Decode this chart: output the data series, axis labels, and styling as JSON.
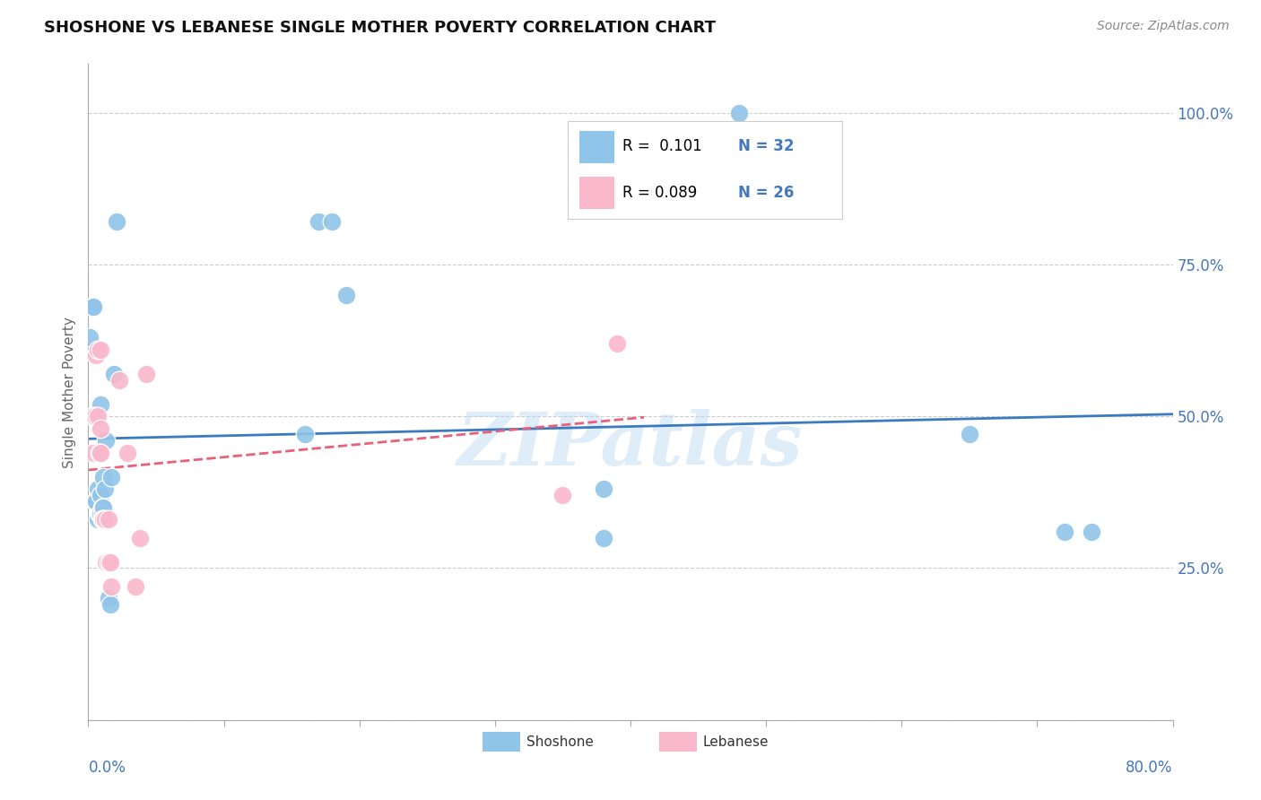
{
  "title": "SHOSHONE VS LEBANESE SINGLE MOTHER POVERTY CORRELATION CHART",
  "source": "Source: ZipAtlas.com",
  "ylabel": "Single Mother Poverty",
  "watermark": "ZIPatlas",
  "shoshone_color": "#90c4e8",
  "lebanese_color": "#f9b8cb",
  "shoshone_line_color": "#3a7abf",
  "lebanese_line_color": "#e8607a",
  "shoshone_x": [
    0.001,
    0.003,
    0.004,
    0.005,
    0.006,
    0.007,
    0.007,
    0.008,
    0.009,
    0.009,
    0.009,
    0.01,
    0.01,
    0.011,
    0.011,
    0.012,
    0.013,
    0.015,
    0.016,
    0.017,
    0.019,
    0.021,
    0.16,
    0.17,
    0.18,
    0.19,
    0.38,
    0.38,
    0.48,
    0.65,
    0.72,
    0.74
  ],
  "shoshone_y": [
    0.63,
    0.68,
    0.68,
    0.36,
    0.36,
    0.38,
    0.33,
    0.34,
    0.52,
    0.37,
    0.34,
    0.35,
    0.34,
    0.35,
    0.4,
    0.38,
    0.46,
    0.2,
    0.19,
    0.4,
    0.57,
    0.82,
    0.47,
    0.82,
    0.82,
    0.7,
    0.38,
    0.3,
    1.0,
    0.47,
    0.31,
    0.31
  ],
  "lebanese_x": [
    0.003,
    0.004,
    0.005,
    0.006,
    0.007,
    0.007,
    0.008,
    0.009,
    0.009,
    0.009,
    0.01,
    0.011,
    0.012,
    0.013,
    0.015,
    0.015,
    0.016,
    0.017,
    0.023,
    0.029,
    0.035,
    0.038,
    0.043,
    0.35,
    0.39
  ],
  "lebanese_y": [
    0.5,
    0.44,
    0.5,
    0.6,
    0.61,
    0.5,
    0.44,
    0.44,
    0.61,
    0.48,
    0.33,
    0.33,
    0.33,
    0.26,
    0.33,
    0.26,
    0.26,
    0.22,
    0.56,
    0.44,
    0.22,
    0.3,
    0.57,
    0.37,
    0.62
  ],
  "xlim": [
    0.0,
    0.8
  ],
  "ylim": [
    0.0,
    1.08
  ],
  "ytick_vals": [
    0.0,
    0.25,
    0.5,
    0.75,
    1.0
  ],
  "ytick_labels": [
    "",
    "25.0%",
    "50.0%",
    "75.0%",
    "100.0%"
  ]
}
